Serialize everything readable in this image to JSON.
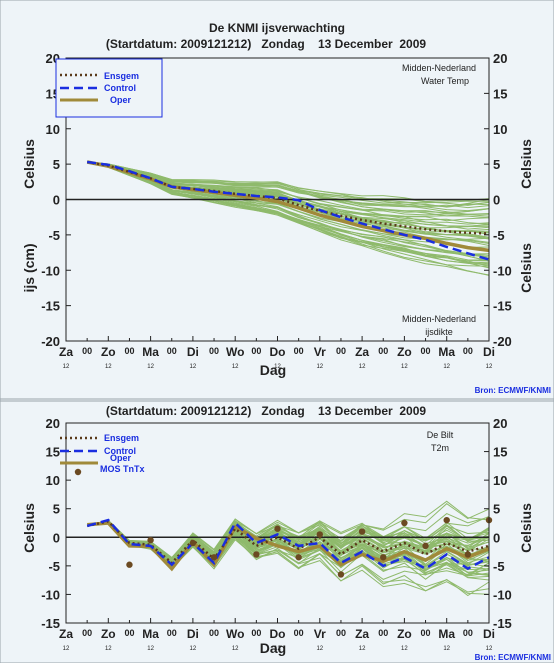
{
  "header": {
    "title": "De KNMI ijsverwachting",
    "subtitle_top": "(Startdatum: 2009121212)   Zondag    13 December  2009",
    "subtitle_bottom": "(Startdatum: 2009121212)   Zondag    13 December  2009"
  },
  "source": "Bron: ECMWF/KNMI",
  "colors": {
    "background": "#eef4f8",
    "ensemble": "#8fba6c",
    "ensgem": "#5a3a1a",
    "control": "#1a2ee0",
    "oper": "#a08a3a",
    "mos": "#6b4a22"
  },
  "x_axis": {
    "label": "Dag",
    "day_labels": [
      "Za",
      "Zo",
      "Ma",
      "Di",
      "Wo",
      "Do",
      "Vr",
      "Za",
      "Zo",
      "Ma",
      "Di"
    ],
    "day_label_x": [
      0,
      1,
      2,
      3,
      4,
      5,
      6,
      7,
      8,
      9,
      10
    ],
    "mid_labels": [
      "00",
      "00",
      "00",
      "00",
      "00",
      "00",
      "00",
      "00",
      "00",
      "00"
    ],
    "mid_label_x": [
      0.5,
      1.5,
      2.5,
      3.5,
      4.5,
      5.5,
      6.5,
      7.5,
      8.5,
      9.5
    ],
    "hour_label": "12"
  },
  "panel_top": {
    "ylabel_left_upper": "Celsius",
    "ylabel_left_lower": "ijs (cm)",
    "ylabel_right_upper": "Celsius",
    "ylabel_right_lower": "Celsius",
    "ylim": [
      -20,
      20
    ],
    "ticks": [
      -20,
      -15,
      -10,
      -5,
      0,
      5,
      10,
      15,
      20
    ],
    "right_tick_labels": [
      "-20",
      "-15",
      "-10",
      "-5",
      "0",
      "5",
      "10",
      "15",
      "20"
    ],
    "location": "Midden-Nederland",
    "variable": "Water Temp",
    "location_bottom": "Midden-Nederland",
    "variable_bottom": "ijsdikte",
    "legend": [
      "Ensgem",
      "Control",
      "Oper"
    ]
  },
  "panel_bottom": {
    "ylabel_left": "Celsius",
    "ylabel_right": "Celsius",
    "ylim": [
      -15,
      20
    ],
    "ticks": [
      -15,
      -10,
      -5,
      0,
      5,
      10,
      15,
      20
    ],
    "location": "De Bilt",
    "variable": "T2m",
    "legend": [
      "Ensgem",
      "Control",
      "Oper",
      "MOS TnTx"
    ]
  },
  "chart_data": [
    {
      "type": "line",
      "title": "De KNMI ijsverwachting",
      "xlabel": "Dag",
      "ylabel": "Celsius / ijs (cm)",
      "ylim": [
        -20,
        20
      ],
      "xlim": [
        0,
        10
      ],
      "x": [
        0.5,
        1,
        1.5,
        2,
        2.5,
        3,
        3.5,
        4,
        4.5,
        5,
        5.5,
        6,
        6.5,
        7,
        7.5,
        8,
        8.5,
        9,
        9.5,
        10
      ],
      "series": [
        {
          "name": "Ensgem",
          "values": [
            5.3,
            4.8,
            3.9,
            3.0,
            1.8,
            1.5,
            1.2,
            0.8,
            0.5,
            0.2,
            -0.8,
            -1.6,
            -2.3,
            -2.9,
            -3.4,
            -3.8,
            -4.2,
            -4.5,
            -4.7,
            -4.8
          ]
        },
        {
          "name": "Control",
          "values": [
            5.3,
            4.9,
            4.0,
            3.0,
            1.8,
            1.5,
            1.1,
            0.8,
            0.5,
            0.3,
            -0.1,
            -1.5,
            -2.5,
            -3.4,
            -4.2,
            -5.0,
            -5.7,
            -6.7,
            -7.6,
            -8.5
          ]
        },
        {
          "name": "Oper",
          "values": [
            5.3,
            4.7,
            3.8,
            2.9,
            1.8,
            1.4,
            1.0,
            0.6,
            0.2,
            -0.3,
            -1.2,
            -2.2,
            -3.0,
            -3.8,
            -4.4,
            -5.0,
            -5.5,
            -6.2,
            -6.8,
            -7.2
          ]
        }
      ],
      "ensemble_count": 50,
      "grid": false,
      "legend_position": "top-left"
    },
    {
      "type": "line",
      "xlabel": "Dag",
      "ylabel": "Celsius",
      "ylim": [
        -15,
        20
      ],
      "xlim": [
        0,
        10
      ],
      "x": [
        0.5,
        1,
        1.5,
        2,
        2.5,
        3,
        3.5,
        4,
        4.5,
        5,
        5.5,
        6,
        6.5,
        7,
        7.5,
        8,
        8.5,
        9,
        9.5,
        10
      ],
      "series": [
        {
          "name": "Ensgem",
          "values": [
            2.0,
            2.8,
            -1.0,
            -1.3,
            -4.5,
            -0.5,
            -3.8,
            1.5,
            -1.5,
            0.0,
            -2.0,
            0.0,
            -3.0,
            -0.5,
            -2.5,
            -1.0,
            -3.0,
            -1.0,
            -2.5,
            -1.5
          ]
        },
        {
          "name": "Control",
          "values": [
            2.0,
            3.0,
            -1.2,
            -1.5,
            -4.8,
            -1.0,
            -4.5,
            2.5,
            -1.0,
            0.5,
            -1.5,
            -1.0,
            -4.5,
            -2.5,
            -5.0,
            -3.5,
            -5.5,
            -3.0,
            -5.5,
            -3.5
          ]
        },
        {
          "name": "Oper",
          "values": [
            2.2,
            2.5,
            -1.5,
            -1.6,
            -5.5,
            -0.8,
            -4.8,
            1.8,
            -0.2,
            -1.5,
            -2.5,
            -1.5,
            -4.8,
            -3.0,
            -4.2,
            -2.5,
            -4.0,
            -2.0,
            -3.5,
            -2.0
          ]
        }
      ],
      "mos_x": [
        1.5,
        2,
        3,
        3.5,
        4.5,
        5,
        5.5,
        6,
        6.5,
        7,
        7.5,
        8,
        8.5,
        9,
        9.5,
        10
      ],
      "mos_values": [
        -4.8,
        -0.5,
        -1.0,
        -3.5,
        -3.0,
        1.5,
        -3.5,
        0.5,
        -6.5,
        1.0,
        -3.5,
        2.5,
        -1.5,
        3.0,
        -3.0,
        3.0
      ],
      "ensemble_count": 50,
      "grid": false,
      "legend_position": "top-left"
    }
  ]
}
